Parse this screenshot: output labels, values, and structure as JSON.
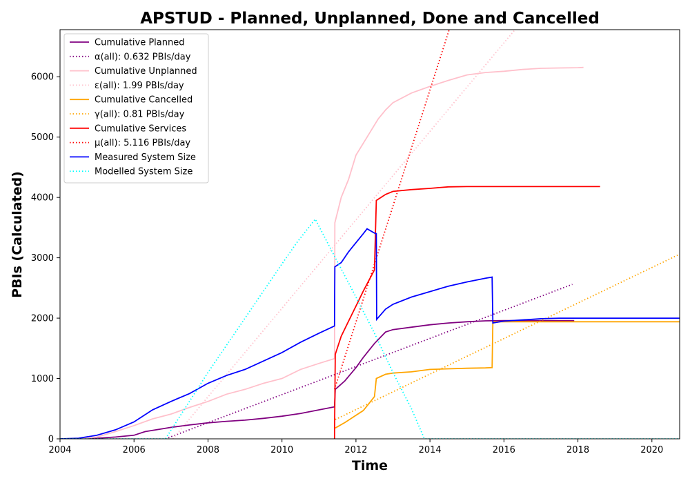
{
  "chart_data": {
    "type": "line",
    "title": "APSTUD - Planned, Unplanned, Done  and Cancelled",
    "xlabel": "Time",
    "ylabel": "PBIs (Calculated)",
    "xlim": [
      2004.0,
      2020.75
    ],
    "ylim": [
      0,
      6780
    ],
    "x_ticks": [
      2004,
      2006,
      2008,
      2010,
      2012,
      2014,
      2016,
      2018,
      2020
    ],
    "y_ticks": [
      0,
      1000,
      2000,
      3000,
      4000,
      5000,
      6000
    ],
    "grid": false,
    "legend_position": "top-left",
    "series": [
      {
        "name": "Cumulative Planned",
        "color": "#800080",
        "style": "solid",
        "points": [
          [
            2004.0,
            0
          ],
          [
            2004.5,
            3
          ],
          [
            2005.0,
            10
          ],
          [
            2005.5,
            30
          ],
          [
            2006.0,
            60
          ],
          [
            2006.3,
            120
          ],
          [
            2006.7,
            160
          ],
          [
            2007.0,
            190
          ],
          [
            2007.5,
            230
          ],
          [
            2008.0,
            265
          ],
          [
            2008.5,
            290
          ],
          [
            2009.0,
            310
          ],
          [
            2009.5,
            340
          ],
          [
            2010.0,
            375
          ],
          [
            2010.5,
            420
          ],
          [
            2011.0,
            480
          ],
          [
            2011.42,
            530
          ],
          [
            2011.44,
            820
          ],
          [
            2011.7,
            960
          ],
          [
            2012.0,
            1180
          ],
          [
            2012.2,
            1350
          ],
          [
            2012.5,
            1580
          ],
          [
            2012.8,
            1770
          ],
          [
            2013.0,
            1810
          ],
          [
            2013.5,
            1850
          ],
          [
            2014.0,
            1890
          ],
          [
            2014.5,
            1920
          ],
          [
            2015.0,
            1940
          ],
          [
            2015.5,
            1955
          ],
          [
            2016.0,
            1960
          ],
          [
            2016.5,
            1960
          ],
          [
            2017.0,
            1960
          ],
          [
            2017.9,
            1960
          ]
        ]
      },
      {
        "name": "α(all): 0.632 PBIs/day",
        "color": "#800080",
        "style": "dotted",
        "points": [
          [
            2006.85,
            0
          ],
          [
            2017.85,
            2560
          ]
        ]
      },
      {
        "name": "Cumulative Unplanned",
        "color": "#ffc0cb",
        "style": "solid",
        "points": [
          [
            2004.0,
            0
          ],
          [
            2004.5,
            3
          ],
          [
            2005.0,
            30
          ],
          [
            2005.5,
            120
          ],
          [
            2006.0,
            220
          ],
          [
            2006.5,
            330
          ],
          [
            2007.0,
            410
          ],
          [
            2007.5,
            520
          ],
          [
            2008.0,
            620
          ],
          [
            2008.5,
            740
          ],
          [
            2009.0,
            820
          ],
          [
            2009.5,
            920
          ],
          [
            2010.0,
            1000
          ],
          [
            2010.5,
            1150
          ],
          [
            2011.0,
            1250
          ],
          [
            2011.42,
            1330
          ],
          [
            2011.43,
            3580
          ],
          [
            2011.6,
            4000
          ],
          [
            2011.8,
            4300
          ],
          [
            2012.0,
            4700
          ],
          [
            2012.3,
            5000
          ],
          [
            2012.6,
            5300
          ],
          [
            2012.8,
            5450
          ],
          [
            2013.0,
            5570
          ],
          [
            2013.5,
            5730
          ],
          [
            2014.0,
            5840
          ],
          [
            2014.5,
            5940
          ],
          [
            2015.0,
            6030
          ],
          [
            2015.5,
            6070
          ],
          [
            2016.0,
            6090
          ],
          [
            2016.5,
            6120
          ],
          [
            2017.0,
            6140
          ],
          [
            2017.5,
            6145
          ],
          [
            2018.0,
            6150
          ],
          [
            2018.15,
            6155
          ]
        ]
      },
      {
        "name": "ε(all): 1.99 PBIs/day",
        "color": "#ffc0cb",
        "style": "dotted",
        "points": [
          [
            2007.05,
            0
          ],
          [
            2016.3,
            6780
          ]
        ]
      },
      {
        "name": "Cumulative Cancelled",
        "color": "#ffa500",
        "style": "solid",
        "points": [
          [
            2011.44,
            180
          ],
          [
            2011.7,
            270
          ],
          [
            2012.0,
            390
          ],
          [
            2012.2,
            470
          ],
          [
            2012.5,
            700
          ],
          [
            2012.55,
            1000
          ],
          [
            2012.8,
            1070
          ],
          [
            2013.0,
            1090
          ],
          [
            2013.5,
            1110
          ],
          [
            2014.0,
            1150
          ],
          [
            2014.5,
            1160
          ],
          [
            2015.0,
            1170
          ],
          [
            2015.5,
            1175
          ],
          [
            2015.68,
            1180
          ],
          [
            2015.7,
            1940
          ],
          [
            2016.0,
            1940
          ],
          [
            2017.0,
            1940
          ],
          [
            2018.0,
            1940
          ],
          [
            2019.0,
            1940
          ],
          [
            2020.75,
            1940
          ]
        ]
      },
      {
        "name": "γ(all): 0.81 PBIs/day",
        "color": "#ffa500",
        "style": "dotted",
        "points": [
          [
            2011.44,
            320
          ],
          [
            2020.75,
            3060
          ]
        ]
      },
      {
        "name": "Cumulative Services",
        "color": "#ff0000",
        "style": "solid",
        "points": [
          [
            2011.42,
            0
          ],
          [
            2011.44,
            1400
          ],
          [
            2011.6,
            1700
          ],
          [
            2011.8,
            1950
          ],
          [
            2012.0,
            2200
          ],
          [
            2012.2,
            2450
          ],
          [
            2012.5,
            2800
          ],
          [
            2012.55,
            3950
          ],
          [
            2012.8,
            4050
          ],
          [
            2013.0,
            4100
          ],
          [
            2013.5,
            4130
          ],
          [
            2014.0,
            4150
          ],
          [
            2014.5,
            4175
          ],
          [
            2015.0,
            4180
          ],
          [
            2016.0,
            4180
          ],
          [
            2017.0,
            4180
          ],
          [
            2018.0,
            4180
          ],
          [
            2018.6,
            4180
          ]
        ]
      },
      {
        "name": "μ(all): 5.116 PBIs/day",
        "color": "#ff0000",
        "style": "dotted",
        "points": [
          [
            2011.42,
            820
          ],
          [
            2014.52,
            6780
          ]
        ]
      },
      {
        "name": "Measured System Size",
        "color": "#0000ff",
        "style": "solid",
        "points": [
          [
            2004.0,
            0
          ],
          [
            2004.5,
            10
          ],
          [
            2005.0,
            60
          ],
          [
            2005.5,
            150
          ],
          [
            2006.0,
            280
          ],
          [
            2006.5,
            480
          ],
          [
            2007.0,
            620
          ],
          [
            2007.5,
            750
          ],
          [
            2008.0,
            920
          ],
          [
            2008.5,
            1050
          ],
          [
            2009.0,
            1150
          ],
          [
            2009.5,
            1290
          ],
          [
            2010.0,
            1430
          ],
          [
            2010.5,
            1600
          ],
          [
            2011.0,
            1750
          ],
          [
            2011.42,
            1870
          ],
          [
            2011.43,
            2850
          ],
          [
            2011.6,
            2920
          ],
          [
            2011.8,
            3100
          ],
          [
            2012.0,
            3250
          ],
          [
            2012.2,
            3400
          ],
          [
            2012.3,
            3480
          ],
          [
            2012.5,
            3410
          ],
          [
            2012.55,
            3400
          ],
          [
            2012.56,
            1980
          ],
          [
            2012.8,
            2150
          ],
          [
            2013.0,
            2230
          ],
          [
            2013.5,
            2350
          ],
          [
            2014.0,
            2440
          ],
          [
            2014.5,
            2530
          ],
          [
            2015.0,
            2600
          ],
          [
            2015.5,
            2660
          ],
          [
            2015.68,
            2680
          ],
          [
            2015.7,
            1920
          ],
          [
            2016.0,
            1950
          ],
          [
            2016.5,
            1970
          ],
          [
            2017.0,
            1990
          ],
          [
            2017.5,
            2000
          ],
          [
            2018.0,
            2000
          ],
          [
            2019.0,
            2000
          ],
          [
            2020.0,
            2000
          ],
          [
            2020.75,
            2000
          ]
        ]
      },
      {
        "name": "Modelled System Size",
        "color": "#00ffff",
        "style": "dotted",
        "points": [
          [
            2004.0,
            0
          ],
          [
            2006.85,
            0
          ],
          [
            2008.0,
            1100
          ],
          [
            2009.0,
            2000
          ],
          [
            2010.0,
            2900
          ],
          [
            2010.4,
            3250
          ],
          [
            2010.9,
            3640
          ],
          [
            2011.4,
            3050
          ],
          [
            2012.0,
            2350
          ],
          [
            2012.5,
            1750
          ],
          [
            2013.0,
            1100
          ],
          [
            2013.5,
            500
          ],
          [
            2013.85,
            0
          ],
          [
            2020.75,
            0
          ]
        ]
      }
    ]
  }
}
